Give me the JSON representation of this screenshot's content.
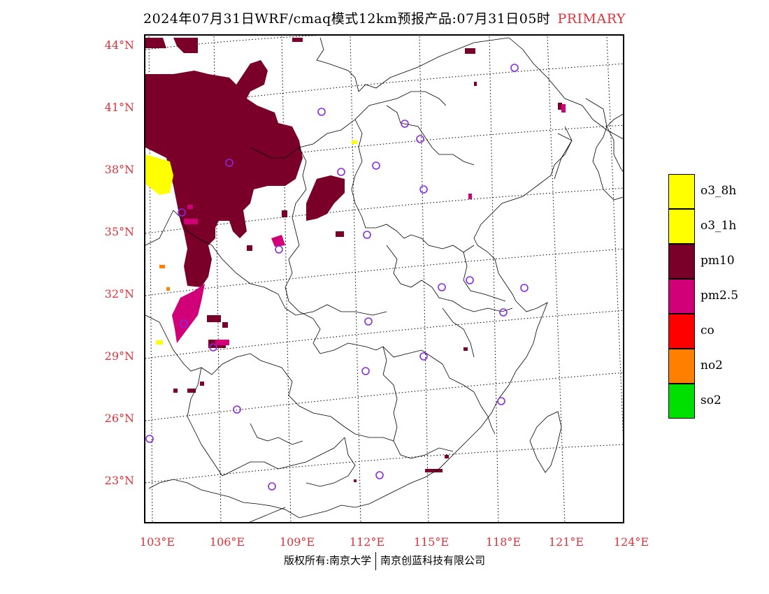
{
  "title": {
    "text": "2024年07月31日WRF/cmaq模式12km预报产品:07月31日05时",
    "tag": "PRIMARY"
  },
  "map": {
    "lat_labels": [
      "44°N",
      "41°N",
      "38°N",
      "35°N",
      "32°N",
      "29°N",
      "26°N",
      "23°N"
    ],
    "lon_labels": [
      "103°E",
      "106°E",
      "109°E",
      "112°E",
      "115°E",
      "118°E",
      "121°E",
      "124°E"
    ]
  },
  "legend": [
    {
      "label": "o3_8h",
      "color": "#ffff00"
    },
    {
      "label": "o3_1h",
      "color": "#ffff00"
    },
    {
      "label": "pm10",
      "color": "#7a0029"
    },
    {
      "label": "pm2.5",
      "color": "#d10078"
    },
    {
      "label": "co",
      "color": "#ff0000"
    },
    {
      "label": "no2",
      "color": "#ff7f00"
    },
    {
      "label": "so2",
      "color": "#00e000"
    }
  ],
  "colors": {
    "pm10": "#7a0029",
    "pm25": "#d10078",
    "o3": "#ffff00",
    "no2": "#ff7f00",
    "station": "#8a2be2",
    "label": "#e0303a"
  },
  "footer": {
    "left": "版权所有:南京大学",
    "right": "南京创蓝科技有限公司"
  }
}
